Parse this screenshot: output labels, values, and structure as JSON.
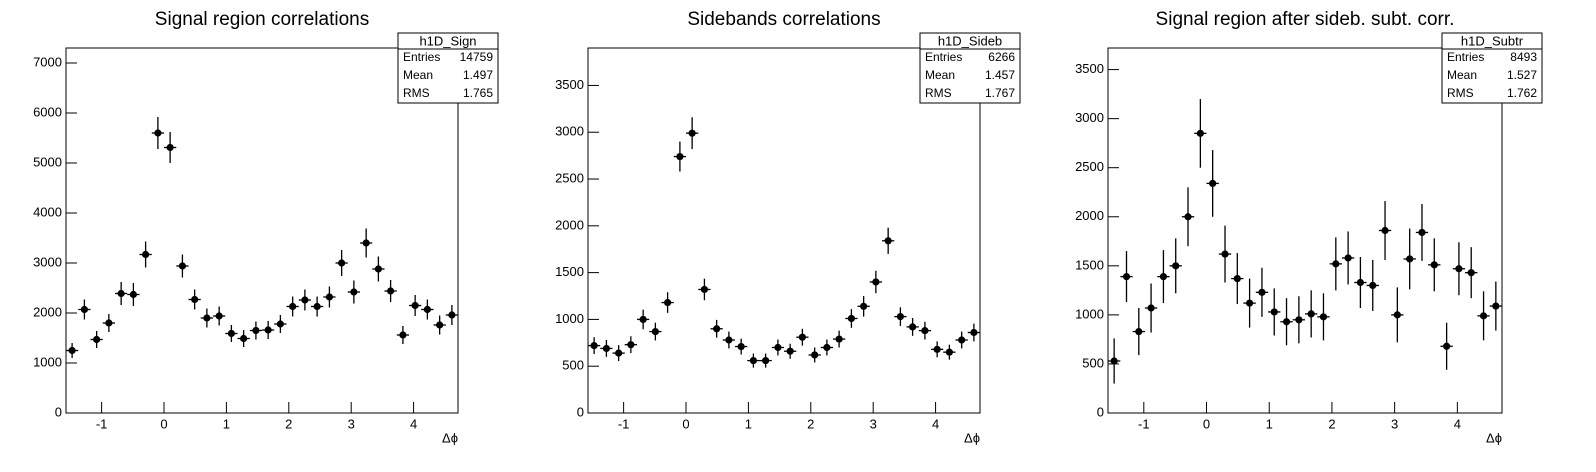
{
  "chart_data": [
    {
      "type": "errorbar",
      "title": "Signal region correlations",
      "x_label": "Δϕ",
      "x": [
        -1.473,
        -1.276,
        -1.08,
        -0.884,
        -0.687,
        -0.491,
        -0.295,
        -0.098,
        0.098,
        0.295,
        0.491,
        0.687,
        0.884,
        1.08,
        1.276,
        1.473,
        1.669,
        1.865,
        2.062,
        2.258,
        2.454,
        2.651,
        2.847,
        3.043,
        3.24,
        3.436,
        3.632,
        3.829,
        4.025,
        4.221,
        4.418,
        4.614
      ],
      "values": [
        1250,
        2070,
        1470,
        1800,
        2390,
        2370,
        3170,
        5600,
        5310,
        2940,
        2270,
        1900,
        1940,
        1590,
        1490,
        1650,
        1660,
        1780,
        2130,
        2260,
        2130,
        2320,
        3000,
        2420,
        3400,
        2880,
        2440,
        1560,
        2150,
        2070,
        1760,
        1960
      ],
      "errors": [
        150,
        200,
        170,
        180,
        230,
        230,
        260,
        320,
        310,
        230,
        200,
        190,
        190,
        170,
        170,
        180,
        180,
        180,
        200,
        210,
        200,
        210,
        260,
        230,
        290,
        250,
        220,
        180,
        210,
        200,
        190,
        200
      ],
      "color": "#000000",
      "xlim": [
        -1.571,
        4.712
      ],
      "xticks": [
        -1,
        0,
        1,
        2,
        3,
        4
      ],
      "ylim": [
        0,
        7300
      ],
      "yticks": [
        0,
        1000,
        2000,
        3000,
        4000,
        5000,
        6000,
        7000
      ],
      "stats": {
        "name": "h1D_Sign",
        "rows": [
          {
            "label": "Entries",
            "value": "14759"
          },
          {
            "label": "Mean",
            "value": "1.497"
          },
          {
            "label": "RMS",
            "value": "1.765"
          }
        ]
      }
    },
    {
      "type": "errorbar",
      "title": "Sidebands correlations",
      "x_label": "Δϕ",
      "x": [
        -1.473,
        -1.276,
        -1.08,
        -0.884,
        -0.687,
        -0.491,
        -0.295,
        -0.098,
        0.098,
        0.295,
        0.491,
        0.687,
        0.884,
        1.08,
        1.276,
        1.473,
        1.669,
        1.865,
        2.062,
        2.258,
        2.454,
        2.651,
        2.847,
        3.043,
        3.24,
        3.436,
        3.632,
        3.829,
        4.025,
        4.221,
        4.418,
        4.614
      ],
      "values": [
        720,
        690,
        640,
        730,
        1000,
        870,
        1180,
        2740,
        2990,
        1320,
        900,
        780,
        710,
        560,
        560,
        700,
        660,
        810,
        620,
        700,
        790,
        1010,
        1140,
        1400,
        1840,
        1030,
        920,
        880,
        680,
        650,
        780,
        860
      ],
      "errors": [
        90,
        90,
        85,
        90,
        105,
        95,
        110,
        160,
        170,
        115,
        95,
        90,
        85,
        75,
        75,
        85,
        80,
        90,
        80,
        85,
        90,
        100,
        110,
        120,
        140,
        100,
        95,
        95,
        85,
        80,
        90,
        95
      ],
      "color": "#000000",
      "xlim": [
        -1.571,
        4.712
      ],
      "xticks": [
        -1,
        0,
        1,
        2,
        3,
        4
      ],
      "ylim": [
        0,
        3900
      ],
      "yticks": [
        0,
        500,
        1000,
        1500,
        2000,
        2500,
        3000,
        3500
      ],
      "stats": {
        "name": "h1D_Sideb",
        "rows": [
          {
            "label": "Entries",
            "value": "6266"
          },
          {
            "label": "Mean",
            "value": "1.457"
          },
          {
            "label": "RMS",
            "value": "1.767"
          }
        ]
      }
    },
    {
      "type": "errorbar",
      "title": "Signal region after sideb. subt. corr.",
      "x_label": "Δϕ",
      "x": [
        -1.473,
        -1.276,
        -1.08,
        -0.884,
        -0.687,
        -0.491,
        -0.295,
        -0.098,
        0.098,
        0.295,
        0.491,
        0.687,
        0.884,
        1.08,
        1.276,
        1.473,
        1.669,
        1.865,
        2.062,
        2.258,
        2.454,
        2.651,
        2.847,
        3.043,
        3.24,
        3.436,
        3.632,
        3.829,
        4.025,
        4.221,
        4.418,
        4.614
      ],
      "values": [
        530,
        1390,
        830,
        1070,
        1390,
        1500,
        2000,
        2850,
        2340,
        1620,
        1370,
        1120,
        1230,
        1030,
        930,
        950,
        1010,
        980,
        1520,
        1580,
        1330,
        1300,
        1860,
        1000,
        1570,
        1840,
        1510,
        680,
        1470,
        1430,
        990,
        1090
      ],
      "errors": [
        230,
        260,
        240,
        250,
        270,
        280,
        300,
        350,
        340,
        290,
        260,
        250,
        250,
        240,
        240,
        240,
        240,
        240,
        270,
        270,
        260,
        260,
        300,
        280,
        310,
        290,
        270,
        240,
        270,
        260,
        250,
        250
      ],
      "color": "#000000",
      "xlim": [
        -1.571,
        4.712
      ],
      "xticks": [
        -1,
        0,
        1,
        2,
        3,
        4
      ],
      "ylim": [
        0,
        3720
      ],
      "yticks": [
        0,
        500,
        1000,
        1500,
        2000,
        2500,
        3000,
        3500
      ],
      "stats": {
        "name": "h1D_Subtr",
        "rows": [
          {
            "label": "Entries",
            "value": "8493"
          },
          {
            "label": "Mean",
            "value": "1.527"
          },
          {
            "label": "RMS",
            "value": "1.762"
          }
        ]
      }
    }
  ]
}
